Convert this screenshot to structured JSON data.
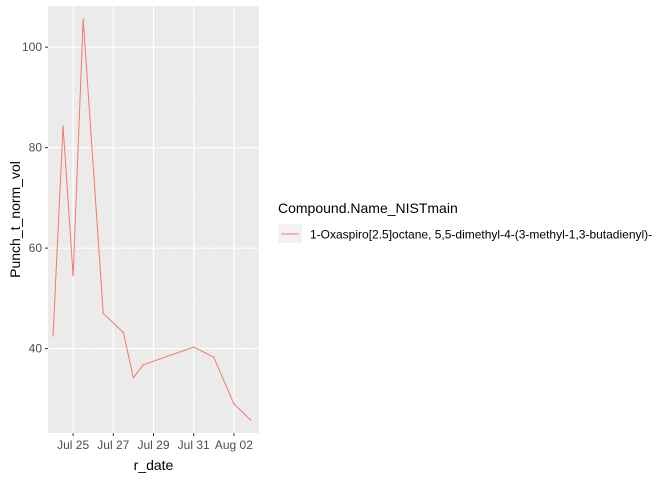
{
  "chart_data": {
    "type": "line",
    "xlabel": "r_date",
    "ylabel": "Punch_t_norm_vol",
    "x_ticks": [
      "Jul 25",
      "Jul 27",
      "Jul 29",
      "Jul 31",
      "Aug 02"
    ],
    "x_tick_dates": [
      "2021-07-25",
      "2021-07-27",
      "2021-07-29",
      "2021-07-31",
      "2021-08-02"
    ],
    "y_ticks": [
      40,
      60,
      80,
      100
    ],
    "xlim": [
      "2021-07-23T18:00",
      "2021-08-03T06:00"
    ],
    "ylim": [
      23.2,
      108.2
    ],
    "grid": true,
    "legend": {
      "title": "Compound.Name_NISTmain",
      "position": "right"
    },
    "series": [
      {
        "name": "1-Oxaspiro[2.5]octane, 5,5-dimethyl-4-(3-methyl-1,3-butadienyl)-",
        "color": "#F8766D",
        "points": [
          {
            "x": "2021-07-24",
            "y": 42.5
          },
          {
            "x": "2021-07-24T12:00",
            "y": 84.3
          },
          {
            "x": "2021-07-25",
            "y": 54.5
          },
          {
            "x": "2021-07-25T12:00",
            "y": 105.6
          },
          {
            "x": "2021-07-26T12:00",
            "y": 47.0
          },
          {
            "x": "2021-07-27T12:00",
            "y": 43.2
          },
          {
            "x": "2021-07-28",
            "y": 34.2
          },
          {
            "x": "2021-07-28T12:00",
            "y": 36.8
          },
          {
            "x": "2021-07-31",
            "y": 40.3
          },
          {
            "x": "2021-08-01",
            "y": 38.3
          },
          {
            "x": "2021-08-02",
            "y": 29.0
          },
          {
            "x": "2021-08-02T20:00",
            "y": 25.8
          }
        ]
      }
    ]
  },
  "colors": {
    "panel_background": "#EBEBEB",
    "grid_major": "#FFFFFF",
    "grid_minor": "#F4F4F4",
    "tick_label": "#4D4D4D",
    "tick_mark": "#333333",
    "series": "#F8766D"
  }
}
